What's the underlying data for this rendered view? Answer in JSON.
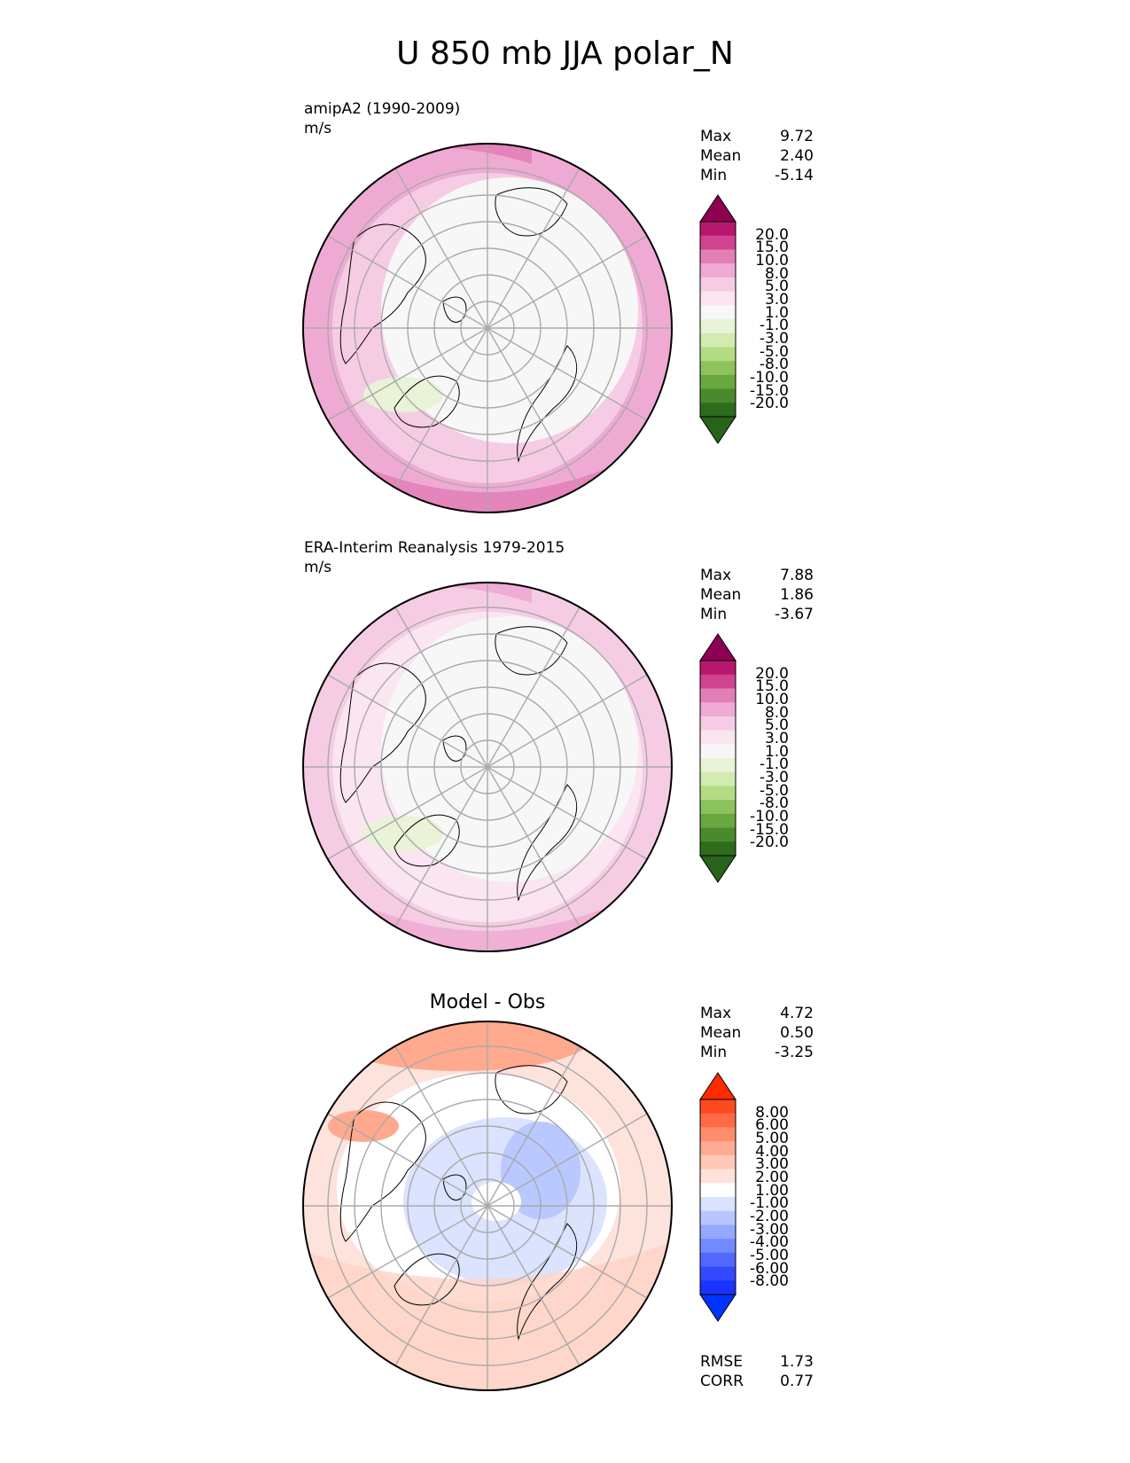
{
  "title": "U 850 mb JJA polar_N",
  "panels": [
    {
      "name": "model",
      "label_line1": "amipA2 (1990-2009)",
      "label_line2": "m/s",
      "stats": [
        {
          "label": "Max",
          "value": "9.72"
        },
        {
          "label": "Mean",
          "value": "2.40"
        },
        {
          "label": "Min",
          "value": "-5.14"
        }
      ],
      "colorbar": "abs"
    },
    {
      "name": "obs",
      "label_line1": "ERA-Interim Reanalysis 1979-2015",
      "label_line2": "m/s",
      "stats": [
        {
          "label": "Max",
          "value": "7.88"
        },
        {
          "label": "Mean",
          "value": "1.86"
        },
        {
          "label": "Min",
          "value": "-3.67"
        }
      ],
      "colorbar": "abs"
    },
    {
      "name": "diff",
      "center_title": "Model - Obs",
      "stats": [
        {
          "label": "Max",
          "value": "4.72"
        },
        {
          "label": "Mean",
          "value": "0.50"
        },
        {
          "label": "Min",
          "value": "-3.25"
        }
      ],
      "extra_stats": [
        {
          "label": "RMSE",
          "value": "1.73"
        },
        {
          "label": "CORR",
          "value": "0.77"
        }
      ],
      "colorbar": "diff"
    }
  ],
  "colorbars": {
    "abs": {
      "levels": [
        "20.0",
        "15.0",
        "10.0",
        "8.0",
        "5.0",
        "3.0",
        "1.0",
        "-1.0",
        "-3.0",
        "-5.0",
        "-8.0",
        "-10.0",
        "-15.0",
        "-20.0"
      ],
      "colors": [
        "#8e0152",
        "#b8176f",
        "#d0438f",
        "#e27fb7",
        "#eeaad3",
        "#f6cce4",
        "#fae5f0",
        "#f7f7f7",
        "#e8f3d7",
        "#d2ebb1",
        "#b3dc85",
        "#8cc35d",
        "#6aa73f",
        "#4b8a2c",
        "#2d6b1d",
        "#276419"
      ]
    },
    "diff": {
      "levels": [
        "8.00",
        "6.00",
        "5.00",
        "4.00",
        "3.00",
        "2.00",
        "1.00",
        "-1.00",
        "-2.00",
        "-3.00",
        "-4.00",
        "-5.00",
        "-6.00",
        "-8.00"
      ],
      "colors": [
        "#ff2a00",
        "#ff4a1f",
        "#ff6a44",
        "#ff8c6d",
        "#ffab93",
        "#ffc8b7",
        "#ffe2d9",
        "#ffffff",
        "#d9e2ff",
        "#b8c6ff",
        "#95a8ff",
        "#7389ff",
        "#5268ff",
        "#3149ff",
        "#1a33ff",
        "#0033ff"
      ]
    }
  },
  "chart_data": [
    {
      "type": "heatmap",
      "title": "amipA2 (1990-2009)",
      "subtitle": "m/s",
      "projection": "north polar stereographic",
      "stats": {
        "max": 9.72,
        "mean": 2.4,
        "min": -5.14
      },
      "levels": [
        -20,
        -15,
        -10,
        -8,
        -5,
        -3,
        -1,
        1,
        3,
        5,
        8,
        10,
        15,
        20
      ],
      "grid": true
    },
    {
      "type": "heatmap",
      "title": "ERA-Interim Reanalysis 1979-2015",
      "subtitle": "m/s",
      "projection": "north polar stereographic",
      "stats": {
        "max": 7.88,
        "mean": 1.86,
        "min": -3.67
      },
      "levels": [
        -20,
        -15,
        -10,
        -8,
        -5,
        -3,
        -1,
        1,
        3,
        5,
        8,
        10,
        15,
        20
      ],
      "grid": true
    },
    {
      "type": "heatmap",
      "title": "Model - Obs",
      "projection": "north polar stereographic",
      "stats": {
        "max": 4.72,
        "mean": 0.5,
        "min": -3.25,
        "rmse": 1.73,
        "corr": 0.77
      },
      "levels": [
        -8,
        -6,
        -5,
        -4,
        -3,
        -2,
        -1,
        1,
        2,
        3,
        4,
        5,
        6,
        8
      ],
      "grid": true
    }
  ]
}
